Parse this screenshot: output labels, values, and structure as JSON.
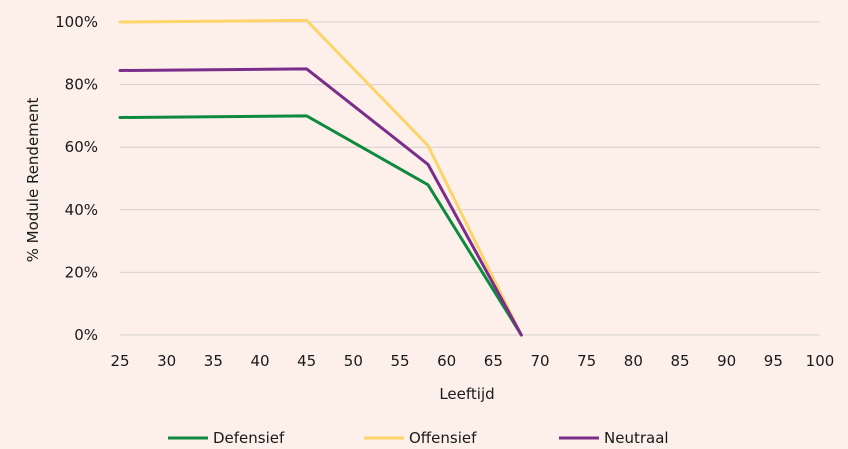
{
  "chart_data": {
    "type": "line",
    "xlabel": "Leeftijd",
    "ylabel": "% Module Rendement",
    "x_ticks": [
      "25",
      "30",
      "35",
      "40",
      "45",
      "50",
      "55",
      "60",
      "65",
      "70",
      "75",
      "80",
      "85",
      "90",
      "95",
      "100"
    ],
    "y_ticks": [
      "0%",
      "20%",
      "40%",
      "60%",
      "80%",
      "100%"
    ],
    "xlim": [
      25,
      100
    ],
    "ylim": [
      0,
      100
    ],
    "grid": true,
    "legend_position": "bottom",
    "series": [
      {
        "name": "Defensief",
        "color": "#0e8a3e",
        "points": [
          [
            25,
            69.5
          ],
          [
            45,
            70
          ],
          [
            58,
            48
          ],
          [
            68,
            0
          ]
        ]
      },
      {
        "name": "Offensief",
        "color": "#fdd46a",
        "points": [
          [
            25,
            100
          ],
          [
            45,
            100.5
          ],
          [
            58,
            60.5
          ],
          [
            68,
            0
          ]
        ]
      },
      {
        "name": "Neutraal",
        "color": "#7b2d8b",
        "points": [
          [
            25,
            84.5
          ],
          [
            45,
            85
          ],
          [
            58,
            54.5
          ],
          [
            68,
            0
          ]
        ]
      }
    ]
  }
}
